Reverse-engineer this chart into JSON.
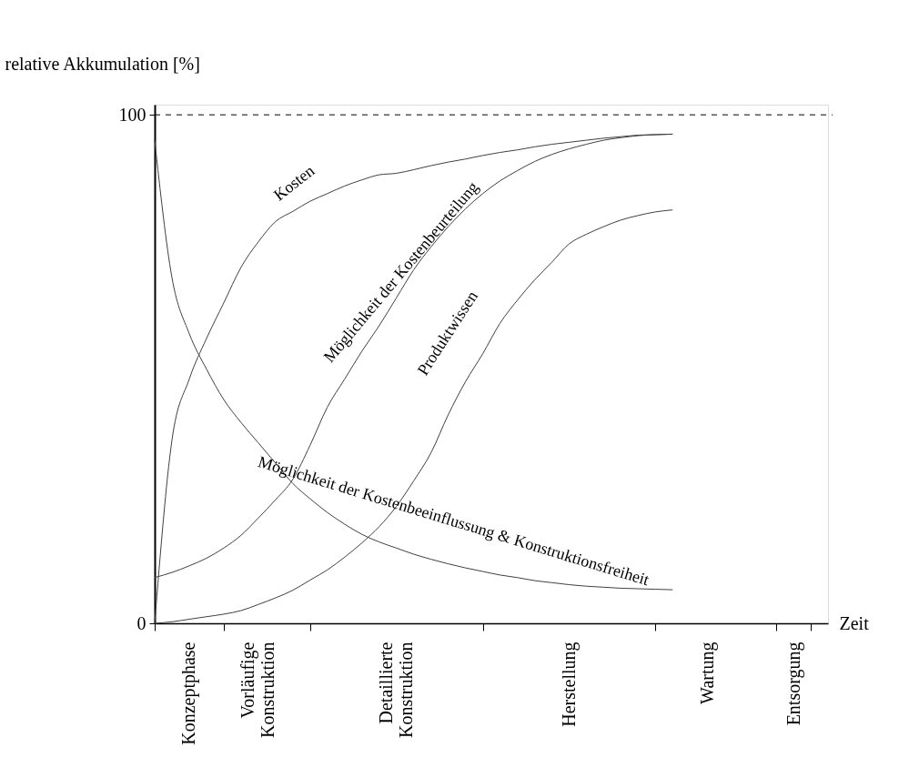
{
  "chart_data": {
    "type": "line",
    "ylabel": "relative Akkumulation [%]",
    "xlabel": "Zeit",
    "categories": [
      null,
      null,
      "Konzeptphase",
      null,
      null,
      null,
      "Vorläufige Konstruktion",
      null,
      null,
      null,
      null,
      null,
      null,
      null,
      "Detaillierte Konstruktion",
      null,
      null,
      null,
      null,
      null,
      null,
      null,
      null,
      null,
      "Herstellung",
      null,
      null,
      null,
      null,
      null,
      null,
      null,
      "Wartung",
      null,
      null,
      null,
      null,
      "Entsorgung",
      null,
      null
    ],
    "ylim": [
      0,
      102
    ],
    "yticks": [
      0,
      100
    ],
    "ref_lines": [
      {
        "axis": "y",
        "value": 100,
        "line_style": "dashed",
        "color": "#000000"
      }
    ],
    "grid": false,
    "legend": false,
    "marker": "none",
    "line_style": "solid",
    "series": [
      {
        "name": "Kosten",
        "color": "#404040",
        "values": [
          0,
          36,
          48,
          56,
          63,
          70,
          75,
          79,
          81,
          83,
          84.5,
          86,
          87.2,
          88.2,
          88.5,
          89.2,
          90,
          90.7,
          91.3,
          92,
          92.6,
          93.1,
          93.7,
          94.2,
          94.6,
          95,
          95.4,
          95.7,
          96,
          96.1,
          96.2,
          null,
          null,
          null,
          null,
          null,
          null,
          null,
          null,
          null
        ]
      },
      {
        "name": "Möglichkeit der Kostenbeurteilung",
        "color": "#404040",
        "values": [
          9,
          10,
          11.3,
          12.8,
          14.8,
          17.3,
          20.7,
          24.3,
          28.3,
          35,
          42.5,
          48,
          53.5,
          58.5,
          64,
          69.5,
          74,
          78,
          81.5,
          84.5,
          87,
          89,
          90.8,
          92.2,
          93.3,
          94.2,
          95,
          95.5,
          95.9,
          96.1,
          96.2,
          null,
          null,
          null,
          null,
          null,
          null,
          null,
          null,
          null
        ]
      },
      {
        "name": "Produktwissen",
        "color": "#404040",
        "values": [
          0,
          0.3,
          0.8,
          1.3,
          1.8,
          2.5,
          3.7,
          5,
          6.5,
          8.5,
          10.5,
          13,
          15.8,
          19,
          23,
          28,
          33.5,
          41,
          47.5,
          53,
          59,
          63.5,
          67.5,
          71,
          74.6,
          76.5,
          78,
          79.3,
          80.2,
          80.9,
          81.3,
          null,
          null,
          null,
          null,
          null,
          null,
          null,
          null,
          null
        ]
      },
      {
        "name": "Möglichkeit der Kostenbeeinflussung & Konstruktionsfreiheit",
        "color": "#404040",
        "values": [
          95,
          68,
          57,
          50,
          44,
          39.5,
          35.5,
          31.5,
          27.5,
          24.5,
          21.8,
          19.5,
          17.5,
          16,
          14.8,
          13.6,
          12.6,
          11.7,
          10.9,
          10.2,
          9.5,
          9,
          8.4,
          8,
          7.6,
          7.3,
          7.1,
          6.9,
          6.8,
          6.7,
          6.6,
          null,
          null,
          null,
          null,
          null,
          null,
          null,
          null,
          null
        ]
      }
    ]
  }
}
